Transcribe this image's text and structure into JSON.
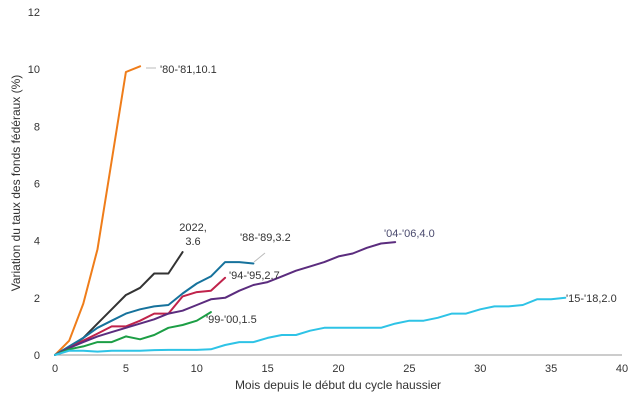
{
  "chart_data": {
    "type": "line",
    "title": "",
    "xlabel": "Mois depuis le début du cycle haussier",
    "ylabel": "Variation du taux des fonds fédéraux (%)",
    "xlim": [
      0,
      40
    ],
    "ylim": [
      0,
      12
    ],
    "xticks": [
      0,
      5,
      10,
      15,
      20,
      25,
      30,
      35,
      40
    ],
    "yticks": [
      0,
      2,
      4,
      6,
      8,
      10,
      12
    ],
    "grid": false,
    "legend": "none",
    "series": [
      {
        "name": "'80-'81",
        "label": "'80-'81,10.1",
        "color": "#ef7d1a",
        "label_color": "#333333",
        "x": [
          0,
          1,
          2,
          3,
          4,
          5,
          6
        ],
        "y": [
          0,
          0.5,
          1.8,
          3.7,
          6.8,
          9.9,
          10.1
        ]
      },
      {
        "name": "2022",
        "label_lines": [
          "2022,",
          "3.6"
        ],
        "color": "#333333",
        "label_color": "#333333",
        "x": [
          0,
          1,
          2,
          3,
          4,
          5,
          6,
          7,
          8,
          9
        ],
        "y": [
          0,
          0.25,
          0.6,
          1.1,
          1.6,
          2.1,
          2.35,
          2.85,
          2.85,
          3.6
        ]
      },
      {
        "name": "'88-'89",
        "label": "'88-'89,3.2",
        "color": "#16729c",
        "label_color": "#333333",
        "x": [
          0,
          1,
          2,
          3,
          4,
          5,
          6,
          7,
          8,
          9,
          10,
          11,
          12,
          13,
          14
        ],
        "y": [
          0,
          0.3,
          0.6,
          0.95,
          1.2,
          1.45,
          1.6,
          1.7,
          1.75,
          2.15,
          2.5,
          2.75,
          3.25,
          3.25,
          3.2
        ]
      },
      {
        "name": "'94-'95",
        "label": "'94-'95,2.7",
        "color": "#c0234b",
        "label_color": "#333333",
        "x": [
          0,
          1,
          2,
          3,
          4,
          5,
          6,
          7,
          8,
          9,
          10,
          11,
          12
        ],
        "y": [
          0,
          0.25,
          0.5,
          0.75,
          1.0,
          1.0,
          1.2,
          1.45,
          1.45,
          2.05,
          2.2,
          2.25,
          2.7
        ]
      },
      {
        "name": "'04-'06",
        "label": "'04-'06,4.0",
        "color": "#5b2c7e",
        "label_color": "#4a4a6e",
        "x": [
          0,
          1,
          2,
          3,
          4,
          5,
          6,
          7,
          8,
          9,
          10,
          11,
          12,
          13,
          14,
          15,
          16,
          17,
          18,
          19,
          20,
          21,
          22,
          23,
          24
        ],
        "y": [
          0,
          0.25,
          0.45,
          0.65,
          0.8,
          0.95,
          1.1,
          1.25,
          1.45,
          1.55,
          1.75,
          1.95,
          2.0,
          2.25,
          2.45,
          2.55,
          2.75,
          2.95,
          3.1,
          3.25,
          3.45,
          3.55,
          3.75,
          3.9,
          3.95
        ]
      },
      {
        "name": "'99-'00",
        "label": "'99-'00,1.5",
        "color": "#1c9e45",
        "label_color": "#333333",
        "x": [
          0,
          1,
          2,
          3,
          4,
          5,
          6,
          7,
          8,
          9,
          10,
          11
        ],
        "y": [
          0,
          0.2,
          0.3,
          0.45,
          0.45,
          0.65,
          0.55,
          0.7,
          0.95,
          1.05,
          1.2,
          1.5
        ]
      },
      {
        "name": "'15-'18",
        "label": "'15-'18,2.0",
        "color": "#2ec3e6",
        "label_color": "#333333",
        "x": [
          0,
          1,
          2,
          3,
          4,
          5,
          6,
          7,
          8,
          9,
          10,
          11,
          12,
          13,
          14,
          15,
          16,
          17,
          18,
          19,
          20,
          21,
          22,
          23,
          24,
          25,
          26,
          27,
          28,
          29,
          30,
          31,
          32,
          33,
          34,
          35,
          36
        ],
        "y": [
          0,
          0.15,
          0.15,
          0.12,
          0.15,
          0.15,
          0.15,
          0.17,
          0.18,
          0.18,
          0.18,
          0.2,
          0.35,
          0.45,
          0.45,
          0.6,
          0.7,
          0.7,
          0.85,
          0.95,
          0.95,
          0.95,
          0.95,
          0.95,
          1.1,
          1.2,
          1.2,
          1.3,
          1.45,
          1.45,
          1.6,
          1.7,
          1.7,
          1.75,
          1.95,
          1.95,
          2.0
        ]
      }
    ]
  }
}
